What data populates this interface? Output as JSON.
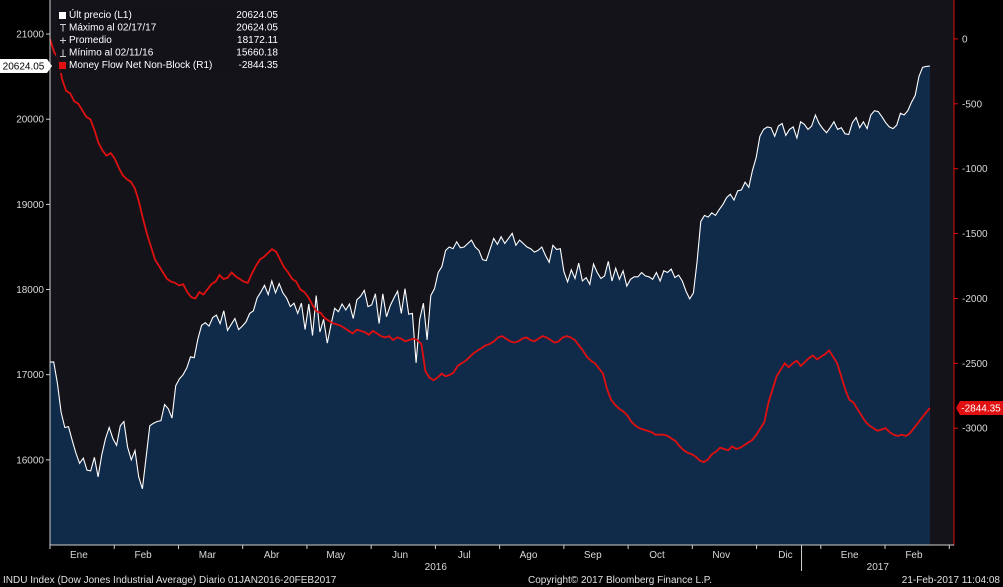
{
  "chart_data": {
    "type": "line",
    "x_ticks": [
      "Ene",
      "Feb",
      "Mar",
      "Abr",
      "May",
      "Jun",
      "Jul",
      "Ago",
      "Sep",
      "Oct",
      "Nov",
      "Dic",
      "Ene",
      "Feb"
    ],
    "year_labels": [
      "2016",
      "2017"
    ],
    "left_axis": {
      "ticks": [
        21000,
        20000,
        19000,
        18000,
        17000,
        16000
      ],
      "ylim": [
        15000,
        21400
      ]
    },
    "right_axis": {
      "ticks": [
        0,
        -500,
        -1000,
        -1500,
        -2000,
        -2500,
        -3000
      ],
      "ylim": [
        -3900,
        300
      ]
    },
    "series": [
      {
        "name": "INDU Index",
        "axis": "left",
        "color": "#ffffff",
        "fill": "#102a4a",
        "values": [
          17148,
          17150,
          16900,
          16560,
          16380,
          16390,
          16230,
          16080,
          15960,
          16020,
          15880,
          15870,
          16030,
          15800,
          16060,
          16250,
          16380,
          16250,
          16170,
          16400,
          16450,
          16150,
          16000,
          16110,
          15800,
          15660,
          16030,
          16400,
          16430,
          16450,
          16460,
          16650,
          16600,
          16490,
          16870,
          16950,
          17000,
          17080,
          17210,
          17200,
          17420,
          17580,
          17610,
          17570,
          17670,
          17700,
          17600,
          17750,
          17520,
          17590,
          17660,
          17530,
          17570,
          17620,
          17720,
          17750,
          17900,
          17970,
          18050,
          17940,
          18100,
          17960,
          18070,
          17960,
          17900,
          17800,
          17840,
          17720,
          17840,
          17530,
          17830,
          17460,
          17930,
          17500,
          17650,
          17370,
          17590,
          17780,
          17740,
          17830,
          17760,
          17830,
          17660,
          17880,
          17920,
          17990,
          17800,
          17820,
          17950,
          17600,
          17950,
          17680,
          17810,
          17900,
          17980,
          17720,
          18010,
          17710,
          17720,
          17140,
          17650,
          17840,
          17410,
          17930,
          18010,
          18200,
          18270,
          18460,
          18500,
          18480,
          18560,
          18490,
          18500,
          18540,
          18580,
          18500,
          18460,
          18350,
          18340,
          18470,
          18600,
          18530,
          18620,
          18540,
          18600,
          18660,
          18520,
          18580,
          18540,
          18500,
          18480,
          18440,
          18460,
          18500,
          18400,
          18320,
          18520,
          18470,
          18480,
          18210,
          18090,
          18230,
          18130,
          18310,
          18100,
          18140,
          18060,
          18300,
          18200,
          18130,
          18160,
          18330,
          18100,
          18250,
          18120,
          18220,
          18040,
          18120,
          18150,
          18150,
          18200,
          18160,
          18150,
          18120,
          18200,
          18100,
          18220,
          18200,
          18240,
          18140,
          18170,
          18100,
          17980,
          17890,
          17960,
          18330,
          18800,
          18870,
          18850,
          18900,
          18870,
          18940,
          19000,
          19080,
          19120,
          19050,
          19160,
          19170,
          19260,
          19200,
          19400,
          19550,
          19800,
          19880,
          19910,
          19900,
          19800,
          19920,
          19950,
          19810,
          19880,
          19910,
          19780,
          19970,
          19940,
          19880,
          19920,
          20050,
          19950,
          19890,
          19840,
          19900,
          19970,
          19880,
          19900,
          19830,
          19820,
          19960,
          20020,
          19900,
          19970,
          19890,
          20050,
          20100,
          20090,
          20030,
          19960,
          19910,
          19890,
          19930,
          20070,
          20050,
          20100,
          20200,
          20280,
          20500,
          20610,
          20620,
          20625
        ]
      },
      {
        "name": "Money Flow Net Non-Block (R1)",
        "axis": "right",
        "color": "#e01010",
        "values": [
          0,
          -100,
          -150,
          -310,
          -400,
          -420,
          -480,
          -500,
          -550,
          -600,
          -620,
          -700,
          -800,
          -860,
          -900,
          -880,
          -920,
          -990,
          -1050,
          -1080,
          -1100,
          -1150,
          -1250,
          -1380,
          -1500,
          -1600,
          -1700,
          -1750,
          -1800,
          -1850,
          -1870,
          -1880,
          -1900,
          -1890,
          -1950,
          -1990,
          -2000,
          -1950,
          -1970,
          -1930,
          -1890,
          -1870,
          -1820,
          -1850,
          -1840,
          -1800,
          -1830,
          -1850,
          -1870,
          -1880,
          -1810,
          -1750,
          -1700,
          -1680,
          -1650,
          -1620,
          -1640,
          -1700,
          -1760,
          -1800,
          -1850,
          -1870,
          -1930,
          -1950,
          -1990,
          -2050,
          -2100,
          -2110,
          -2150,
          -2170,
          -2190,
          -2200,
          -2210,
          -2230,
          -2250,
          -2270,
          -2240,
          -2250,
          -2260,
          -2280,
          -2250,
          -2270,
          -2290,
          -2300,
          -2290,
          -2320,
          -2300,
          -2310,
          -2330,
          -2320,
          -2310,
          -2320,
          -2350,
          -2560,
          -2610,
          -2630,
          -2610,
          -2580,
          -2600,
          -2590,
          -2570,
          -2520,
          -2500,
          -2480,
          -2450,
          -2420,
          -2400,
          -2380,
          -2360,
          -2350,
          -2330,
          -2300,
          -2290,
          -2310,
          -2330,
          -2340,
          -2330,
          -2310,
          -2300,
          -2320,
          -2330,
          -2310,
          -2290,
          -2300,
          -2320,
          -2340,
          -2330,
          -2300,
          -2290,
          -2300,
          -2320,
          -2360,
          -2400,
          -2450,
          -2480,
          -2500,
          -2540,
          -2580,
          -2700,
          -2780,
          -2820,
          -2850,
          -2870,
          -2900,
          -2950,
          -2980,
          -3000,
          -3010,
          -3020,
          -3030,
          -3050,
          -3050,
          -3050,
          -3060,
          -3080,
          -3100,
          -3140,
          -3170,
          -3190,
          -3200,
          -3220,
          -3250,
          -3260,
          -3240,
          -3200,
          -3180,
          -3150,
          -3160,
          -3170,
          -3140,
          -3160,
          -3150,
          -3130,
          -3110,
          -3090,
          -3050,
          -3000,
          -2950,
          -2800,
          -2700,
          -2600,
          -2550,
          -2500,
          -2530,
          -2500,
          -2480,
          -2520,
          -2490,
          -2460,
          -2440,
          -2470,
          -2450,
          -2430,
          -2400,
          -2450,
          -2500,
          -2600,
          -2700,
          -2780,
          -2800,
          -2850,
          -2900,
          -2950,
          -2980,
          -3000,
          -3020,
          -3010,
          -3000,
          -3030,
          -3050,
          -3060,
          -3050,
          -3060,
          -3040,
          -3000,
          -2960,
          -2920,
          -2880,
          -2844
        ]
      }
    ],
    "legend": [
      {
        "label": "Últ precio (L1)",
        "value": "20624.05",
        "marker": "filled-square",
        "color": "#ffffff"
      },
      {
        "label": "Máximo al 02/17/17",
        "value": "20624.05",
        "marker": "max-glyph",
        "color": "#cfcfcf"
      },
      {
        "label": "Promedio",
        "value": "18172.11",
        "marker": "avg-glyph",
        "color": "#cfcfcf"
      },
      {
        "label": "Mínimo al 02/11/16",
        "value": "15660.18",
        "marker": "min-glyph",
        "color": "#cfcfcf"
      },
      {
        "label": "Money Flow Net Non-Block (R1)",
        "value": "-2844.35",
        "marker": "filled-square",
        "color": "#e01010"
      }
    ],
    "last_value_tags": {
      "left": "20624.05",
      "right": "-2844.35"
    },
    "legend_position": "top-left",
    "grid": false
  },
  "footer": {
    "left": "INDU Index (Dow Jones Industrial Average)  Diario 01JAN2016-20FEB2017",
    "center": "Copyright© 2017 Bloomberg Finance L.P.",
    "right": "21-Feb-2017 11:04:08"
  }
}
